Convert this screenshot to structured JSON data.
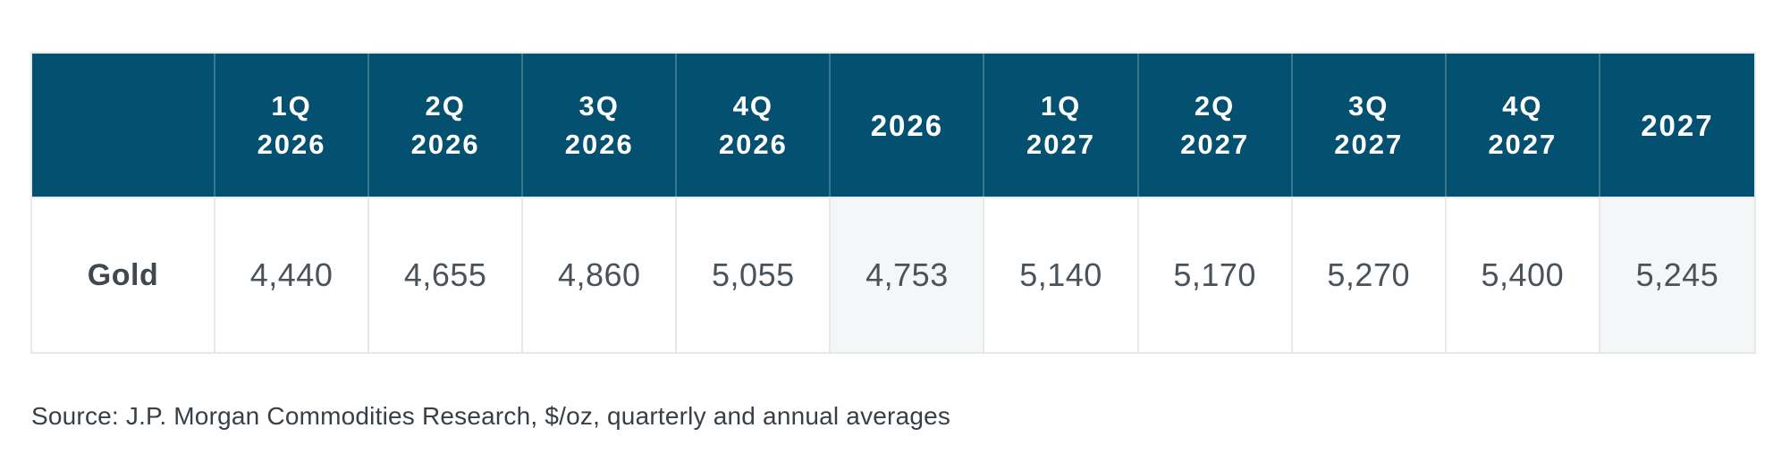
{
  "colors": {
    "header_bg": "#045070",
    "header_text": "#FFFFFF",
    "annual_cell_bg": "#F4F6F8",
    "grid_line": "#E6E9EA",
    "value_text": "#4A525A",
    "label_text": "#3F474F",
    "source_text": "#373F47"
  },
  "table": {
    "corner_label": "",
    "columns": [
      {
        "id": "1q2026",
        "line1": "1Q",
        "line2": "2026",
        "type": "quarter"
      },
      {
        "id": "2q2026",
        "line1": "2Q",
        "line2": "2026",
        "type": "quarter"
      },
      {
        "id": "3q2026",
        "line1": "3Q",
        "line2": "2026",
        "type": "quarter"
      },
      {
        "id": "4q2026",
        "line1": "4Q",
        "line2": "2026",
        "type": "quarter"
      },
      {
        "id": "2026",
        "line1": "2026",
        "line2": "",
        "type": "annual"
      },
      {
        "id": "1q2027",
        "line1": "1Q",
        "line2": "2027",
        "type": "quarter"
      },
      {
        "id": "2q2027",
        "line1": "2Q",
        "line2": "2027",
        "type": "quarter"
      },
      {
        "id": "3q2027",
        "line1": "3Q",
        "line2": "2027",
        "type": "quarter"
      },
      {
        "id": "4q2027",
        "line1": "4Q",
        "line2": "2027",
        "type": "quarter"
      },
      {
        "id": "2027",
        "line1": "2027",
        "line2": "",
        "type": "annual"
      }
    ],
    "rows": [
      {
        "label": "Gold",
        "values": [
          "4,440",
          "4,655",
          "4,860",
          "5,055",
          "4,753",
          "5,140",
          "5,170",
          "5,270",
          "5,400",
          "5,245"
        ]
      }
    ]
  },
  "source_note": "Source: J.P. Morgan Commodities Research, $/oz, quarterly and annual averages",
  "chart_data": {
    "type": "table",
    "columns": [
      "",
      "1Q 2026",
      "2Q 2026",
      "3Q 2026",
      "4Q 2026",
      "2026",
      "1Q 2027",
      "2Q 2027",
      "3Q 2027",
      "4Q 2027",
      "2027"
    ],
    "rows": [
      {
        "label": "Gold",
        "values": [
          4440,
          4655,
          4860,
          5055,
          4753,
          5140,
          5170,
          5270,
          5400,
          5245
        ]
      }
    ],
    "units": "$/oz",
    "annual_average_columns": [
      "2026",
      "2027"
    ],
    "source": "Source: J.P. Morgan Commodities Research, $/oz, quarterly and annual averages"
  }
}
